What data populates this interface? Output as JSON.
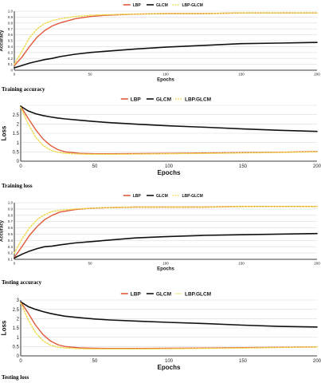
{
  "figure": {
    "captions": [
      "Training accuracy",
      "Training loss",
      "Testing accuracy",
      "Testing loss"
    ]
  },
  "colors": {
    "LBP": "#e05a3a",
    "GLCM": "#111111",
    "LBP-GLCM": "#f0dc50"
  },
  "chart_data": [
    {
      "type": "line",
      "xlabel": "Epochs",
      "ylabel": "Accuracy",
      "xlim": [
        0,
        200
      ],
      "ylim": [
        0,
        1.0
      ],
      "xticks": [
        0,
        50,
        100,
        150,
        200
      ],
      "yticks": [
        0,
        0.1,
        0.2,
        0.3,
        0.4,
        0.5,
        0.6,
        0.7,
        0.8,
        0.9,
        1.0
      ],
      "ytick_labels": [
        "0",
        "0.1",
        "0.2",
        "0.3",
        "0.4",
        "0.5",
        "0.6",
        "0.7",
        "0.8",
        "0.9",
        "1.0"
      ],
      "grid": true,
      "legend_position": "top",
      "x": [
        0,
        5,
        10,
        15,
        20,
        25,
        30,
        40,
        50,
        60,
        80,
        100,
        125,
        150,
        175,
        200
      ],
      "series": [
        {
          "name": "LBP",
          "values": [
            0.08,
            0.22,
            0.4,
            0.56,
            0.67,
            0.75,
            0.8,
            0.87,
            0.91,
            0.93,
            0.95,
            0.96,
            0.96,
            0.97,
            0.97,
            0.97
          ]
        },
        {
          "name": "GLCM",
          "values": [
            0.04,
            0.08,
            0.12,
            0.15,
            0.18,
            0.2,
            0.23,
            0.27,
            0.3,
            0.32,
            0.36,
            0.39,
            0.42,
            0.45,
            0.46,
            0.47
          ]
        },
        {
          "name": "LBP-GLCM",
          "values": [
            0.1,
            0.32,
            0.55,
            0.7,
            0.79,
            0.84,
            0.87,
            0.91,
            0.93,
            0.94,
            0.95,
            0.96,
            0.96,
            0.97,
            0.97,
            0.97
          ]
        }
      ]
    },
    {
      "type": "line",
      "xlabel": "Epochs",
      "ylabel": "Loss",
      "xlim": [
        0,
        200
      ],
      "ylim": [
        0,
        3
      ],
      "xticks": [
        0,
        50,
        100,
        150,
        200
      ],
      "yticks": [
        0,
        0.5,
        1,
        1.5,
        2,
        2.5,
        3
      ],
      "ytick_labels": [
        "0",
        "0.5",
        "1",
        "1.5",
        "2",
        "2.5",
        ""
      ],
      "grid": true,
      "legend_position": "top",
      "x": [
        0,
        5,
        10,
        15,
        20,
        25,
        30,
        40,
        50,
        60,
        80,
        100,
        125,
        150,
        175,
        200
      ],
      "series": [
        {
          "name": "LBP",
          "values": [
            2.95,
            2.3,
            1.7,
            1.2,
            0.85,
            0.62,
            0.5,
            0.42,
            0.4,
            0.4,
            0.41,
            0.42,
            0.44,
            0.46,
            0.48,
            0.52
          ]
        },
        {
          "name": "GLCM",
          "values": [
            2.95,
            2.7,
            2.55,
            2.45,
            2.38,
            2.32,
            2.27,
            2.2,
            2.13,
            2.07,
            1.98,
            1.9,
            1.82,
            1.73,
            1.66,
            1.6
          ]
        },
        {
          "name": "LBP.GLCM",
          "values": [
            2.9,
            2.0,
            1.3,
            0.85,
            0.6,
            0.48,
            0.42,
            0.38,
            0.37,
            0.37,
            0.38,
            0.4,
            0.42,
            0.44,
            0.47,
            0.5
          ]
        }
      ]
    },
    {
      "type": "line",
      "xlabel": "Epochs",
      "ylabel": "Accuracy",
      "xlim": [
        0,
        200
      ],
      "ylim": [
        0.1,
        1.0
      ],
      "xticks": [
        0,
        50,
        100,
        150,
        200
      ],
      "yticks": [
        0.1,
        0.2,
        0.3,
        0.4,
        0.5,
        0.6,
        0.7,
        0.8,
        0.9,
        1.0
      ],
      "ytick_labels": [
        "0.1",
        "0.2",
        "0.3",
        "0.4",
        "0.5",
        "0.6",
        "0.7",
        "0.8",
        "0.9",
        "1.0"
      ],
      "grid": true,
      "legend_position": "top",
      "x": [
        0,
        5,
        10,
        15,
        20,
        25,
        30,
        40,
        50,
        60,
        80,
        100,
        125,
        150,
        175,
        200
      ],
      "series": [
        {
          "name": "LBP",
          "values": [
            0.13,
            0.3,
            0.48,
            0.62,
            0.73,
            0.8,
            0.85,
            0.89,
            0.91,
            0.92,
            0.93,
            0.93,
            0.93,
            0.94,
            0.94,
            0.94
          ]
        },
        {
          "name": "GLCM",
          "values": [
            0.12,
            0.18,
            0.23,
            0.27,
            0.3,
            0.31,
            0.33,
            0.36,
            0.38,
            0.4,
            0.44,
            0.46,
            0.48,
            0.49,
            0.5,
            0.51
          ]
        },
        {
          "name": "LBP-GLCM",
          "values": [
            0.2,
            0.42,
            0.6,
            0.73,
            0.81,
            0.86,
            0.88,
            0.9,
            0.91,
            0.92,
            0.93,
            0.93,
            0.93,
            0.94,
            0.94,
            0.94
          ]
        }
      ]
    },
    {
      "type": "line",
      "xlabel": "Epochs",
      "ylabel": "Loss",
      "xlim": [
        0,
        200
      ],
      "ylim": [
        0,
        3
      ],
      "xticks": [
        0,
        50,
        100,
        150,
        200
      ],
      "yticks": [
        0,
        0.5,
        1,
        1.5,
        2,
        2.5,
        3
      ],
      "ytick_labels": [
        "0",
        "0.5",
        "1",
        "1.5",
        "2",
        "2.5",
        "3"
      ],
      "grid": true,
      "legend_position": "top",
      "x": [
        0,
        5,
        10,
        15,
        20,
        25,
        30,
        40,
        50,
        60,
        80,
        100,
        125,
        150,
        175,
        200
      ],
      "series": [
        {
          "name": "LBP",
          "values": [
            2.9,
            2.3,
            1.65,
            1.15,
            0.8,
            0.6,
            0.5,
            0.43,
            0.41,
            0.4,
            0.4,
            0.41,
            0.42,
            0.44,
            0.46,
            0.48
          ]
        },
        {
          "name": "GLCM",
          "values": [
            2.9,
            2.65,
            2.5,
            2.38,
            2.28,
            2.2,
            2.13,
            2.05,
            1.98,
            1.93,
            1.86,
            1.8,
            1.73,
            1.65,
            1.58,
            1.55
          ]
        },
        {
          "name": "LBP.GLCM",
          "values": [
            2.85,
            1.95,
            1.25,
            0.82,
            0.58,
            0.47,
            0.42,
            0.38,
            0.37,
            0.37,
            0.37,
            0.38,
            0.4,
            0.42,
            0.45,
            0.48
          ]
        }
      ]
    }
  ]
}
